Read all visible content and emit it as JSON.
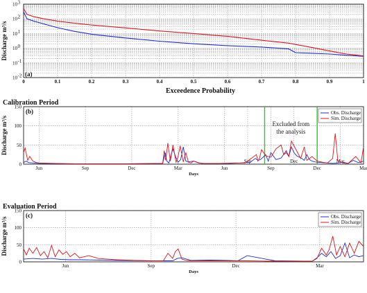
{
  "colors": {
    "observed": "#1f2bd6",
    "simulated": "#e0141a",
    "excluded": "#22cc22",
    "grid": "#9a9a9a"
  },
  "chart_data": [
    {
      "type": "line",
      "panel": "(a)",
      "title": "",
      "xlabel": "Exceedence Probability",
      "ylabel": "Discharge m³/s",
      "yscale": "log",
      "xlim": [
        0,
        1
      ],
      "ylim": [
        0.01,
        1000
      ],
      "x_ticks": [
        "0",
        "0.1",
        "0.2",
        "0.3",
        "0.4",
        "0.5",
        "0.6",
        "0.7",
        "0.8",
        "0.9",
        "1"
      ],
      "y_ticks": [
        {
          "base": "10",
          "exp": "-2"
        },
        {
          "base": "10",
          "exp": "-1"
        },
        {
          "base": "10",
          "exp": "0"
        },
        {
          "base": "10",
          "exp": "1"
        },
        {
          "base": "10",
          "exp": "2"
        },
        {
          "base": "10",
          "exp": "3"
        }
      ],
      "grid": true,
      "series": [
        {
          "x": [
            0,
            0.01,
            0.03,
            0.06,
            0.1,
            0.15,
            0.2,
            0.3,
            0.4,
            0.5,
            0.6,
            0.7,
            0.78,
            0.8,
            0.85,
            0.9,
            0.95,
            1.0
          ],
          "y": [
            300,
            100,
            70,
            45,
            25,
            14,
            9,
            5,
            3,
            2,
            1.5,
            1.2,
            0.9,
            0.5,
            0.45,
            0.4,
            0.33,
            0.28
          ]
        },
        {
          "x": [
            0,
            0.01,
            0.03,
            0.06,
            0.1,
            0.15,
            0.2,
            0.3,
            0.4,
            0.5,
            0.6,
            0.7,
            0.78,
            0.8,
            0.85,
            0.9,
            0.95,
            1.0
          ],
          "y": [
            500,
            200,
            140,
            100,
            70,
            50,
            38,
            24,
            15,
            10,
            6.5,
            3.5,
            2.2,
            1.8,
            1.1,
            0.65,
            0.4,
            0.3
          ]
        }
      ]
    },
    {
      "type": "line",
      "panel": "(b)",
      "title": "Calibration Period",
      "xlabel": "Days",
      "ylabel": "Discharge m³/s",
      "xlim": [
        0,
        660
      ],
      "ylim": [
        0,
        150
      ],
      "y_ticks": [
        "0",
        "50",
        "100",
        "150"
      ],
      "x_ticks": [
        {
          "x": 30,
          "label": "Jun"
        },
        {
          "x": 120,
          "label": "Sep"
        },
        {
          "x": 210,
          "label": "Dec"
        },
        {
          "x": 300,
          "label": "Mar"
        },
        {
          "x": 390,
          "label": "Jun"
        },
        {
          "x": 480,
          "label": "Sep"
        },
        {
          "x": 570,
          "label": "Dec"
        },
        {
          "x": 660,
          "label": "Mar"
        }
      ],
      "x_ticks_upper": [
        {
          "x": 435,
          "label": "Sep"
        },
        {
          "x": 525,
          "label": "Dec"
        },
        {
          "x": 615,
          "label": "Mar"
        }
      ],
      "legend": {
        "position": "top-right",
        "entries": [
          "Obs. Discharge",
          "Sim. Discharge"
        ]
      },
      "annotation": {
        "line1": "Excluded from",
        "line2": "the analysis"
      },
      "excluded_range": [
        468,
        570
      ],
      "grid": true,
      "series": [
        {
          "x": [
            0,
            5,
            10,
            20,
            30,
            60,
            100,
            200,
            270,
            275,
            278,
            282,
            290,
            295,
            300,
            305,
            310,
            315,
            320,
            330,
            340,
            350,
            360,
            380,
            400,
            420,
            440,
            450,
            455,
            460,
            465,
            470,
            475,
            480,
            490,
            500,
            510,
            515,
            520,
            525,
            530,
            540,
            545,
            550,
            555,
            560,
            565,
            570,
            580,
            590,
            600,
            610,
            620,
            630,
            640,
            650,
            660
          ],
          "y": [
            4,
            8,
            4,
            3,
            2,
            1.5,
            1,
            1,
            2,
            30,
            8,
            3,
            40,
            20,
            5,
            12,
            45,
            8,
            6,
            8,
            3,
            2,
            2,
            2,
            2,
            3,
            5,
            15,
            10,
            12,
            18,
            25,
            8,
            30,
            12,
            16,
            35,
            20,
            45,
            30,
            22,
            15,
            10,
            25,
            12,
            8,
            6,
            5,
            4,
            3,
            2,
            3,
            5,
            2,
            10,
            4,
            8
          ]
        },
        {
          "x": [
            0,
            3,
            8,
            12,
            18,
            25,
            30,
            60,
            100,
            200,
            270,
            273,
            276,
            280,
            285,
            290,
            296,
            300,
            304,
            310,
            315,
            320,
            325,
            330,
            345,
            360,
            380,
            410,
            430,
            452,
            455,
            458,
            462,
            470,
            480,
            490,
            500,
            505,
            510,
            515,
            520,
            530,
            538,
            545,
            550,
            560,
            570,
            580,
            590,
            600,
            605,
            610,
            620,
            630,
            645,
            655,
            660
          ],
          "y": [
            30,
            42,
            10,
            20,
            8,
            4,
            3,
            2,
            1,
            1,
            2,
            35,
            10,
            55,
            8,
            50,
            5,
            20,
            48,
            6,
            30,
            5,
            3,
            8,
            2,
            2,
            2,
            3,
            3,
            25,
            8,
            15,
            38,
            22,
            18,
            40,
            50,
            25,
            30,
            20,
            60,
            35,
            15,
            45,
            10,
            20,
            8,
            5,
            3,
            15,
            80,
            10,
            3,
            2,
            20,
            3,
            45
          ]
        }
      ]
    },
    {
      "type": "line",
      "panel": "(c)",
      "title": "Evaluation Period",
      "xlabel": "Days",
      "ylabel": "Discharge m³/s",
      "xlim": [
        0,
        365
      ],
      "ylim": [
        0,
        150
      ],
      "y_ticks": [
        "0",
        "50",
        "100",
        "150"
      ],
      "x_ticks": [
        {
          "x": 45,
          "label": "Jun"
        },
        {
          "x": 137,
          "label": "Sep"
        },
        {
          "x": 228,
          "label": "Dec"
        },
        {
          "x": 318,
          "label": "Mar"
        }
      ],
      "legend": {
        "position": "top-right",
        "entries": [
          "Obs. Discharge",
          "Sim. Discharge"
        ]
      },
      "grid": true,
      "series": [
        {
          "x": [
            0,
            5,
            10,
            20,
            30,
            40,
            50,
            60,
            80,
            100,
            130,
            150,
            160,
            165,
            170,
            180,
            200,
            220,
            230,
            240,
            270,
            300,
            310,
            315,
            320,
            325,
            330,
            335,
            340,
            345,
            350,
            355,
            360,
            365
          ],
          "y": [
            8,
            9,
            10,
            8,
            10,
            7,
            6,
            6,
            5,
            4,
            3,
            3,
            3,
            10,
            12,
            4,
            5,
            4,
            3,
            18,
            3,
            2,
            2,
            12,
            25,
            15,
            30,
            10,
            18,
            55,
            12,
            20,
            15,
            18
          ]
        },
        {
          "x": [
            0,
            3,
            6,
            10,
            14,
            18,
            22,
            26,
            30,
            34,
            38,
            42,
            46,
            50,
            55,
            60,
            70,
            80,
            90,
            100,
            120,
            140,
            150,
            155,
            160,
            163,
            166,
            170,
            175,
            180,
            200,
            220,
            230,
            240,
            260,
            280,
            300,
            310,
            315,
            320,
            325,
            328,
            332,
            336,
            340,
            345,
            350,
            355,
            360,
            365
          ],
          "y": [
            38,
            20,
            40,
            25,
            42,
            18,
            30,
            12,
            48,
            15,
            35,
            22,
            30,
            15,
            25,
            12,
            18,
            10,
            8,
            6,
            4,
            3,
            3,
            25,
            10,
            30,
            38,
            8,
            4,
            3,
            3,
            3,
            3,
            3,
            2,
            2,
            2,
            2,
            10,
            40,
            20,
            35,
            75,
            20,
            45,
            15,
            55,
            25,
            60,
            45
          ]
        }
      ]
    }
  ]
}
